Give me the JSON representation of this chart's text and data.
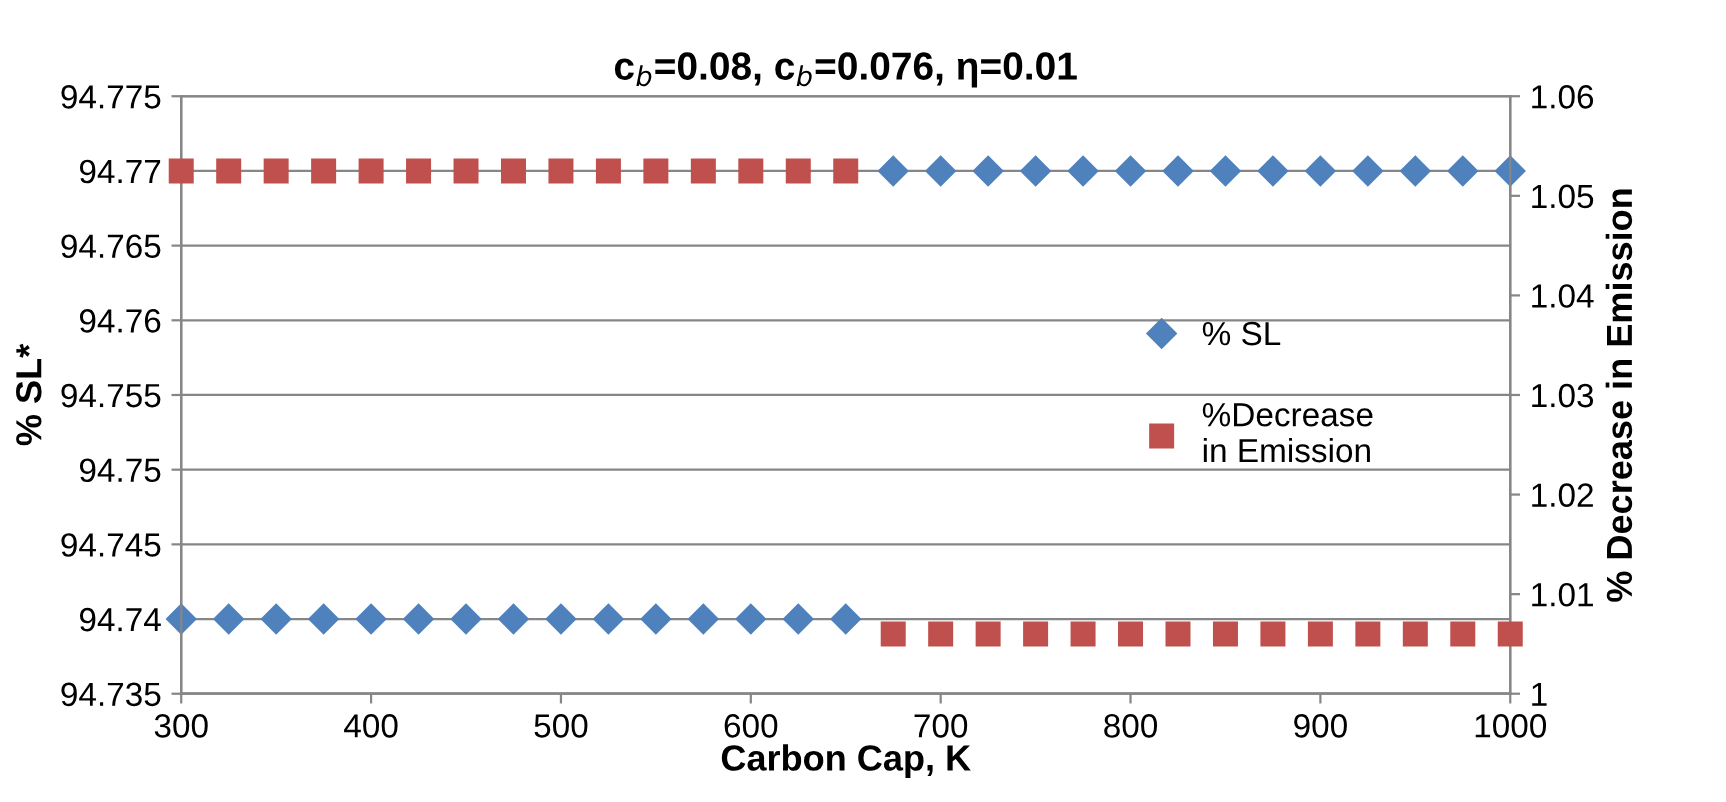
{
  "chart_data": {
    "type": "scatter",
    "title": "c$_{b}$=0.08, c$_{b}$=0.076, η=0.01",
    "xlabel": "Carbon Cap, K",
    "ylabel": "% SL*",
    "y2label": "% Decrease in Emission",
    "x": [
      300,
      325,
      350,
      375,
      400,
      425,
      450,
      475,
      500,
      525,
      550,
      575,
      600,
      625,
      650,
      675,
      700,
      725,
      750,
      775,
      800,
      825,
      850,
      875,
      900,
      925,
      950,
      975,
      1000
    ],
    "series": [
      {
        "name": "% SL",
        "color": "#4f81bd",
        "marker": "diamond",
        "values": [
          94.74,
          94.74,
          94.74,
          94.74,
          94.74,
          94.74,
          94.74,
          94.74,
          94.74,
          94.74,
          94.74,
          94.74,
          94.74,
          94.74,
          94.74,
          94.77,
          94.77,
          94.77,
          94.77,
          94.77,
          94.77,
          94.77,
          94.77,
          94.77,
          94.77,
          94.77,
          94.77,
          94.77,
          94.77
        ]
      },
      {
        "name": "%Decrease\nin Emission",
        "color": "#c0504d",
        "marker": "square",
        "axis": "y2",
        "values": [
          1.0525,
          1.0525,
          1.0525,
          1.0525,
          1.0525,
          1.0525,
          1.0525,
          1.0525,
          1.0525,
          1.0525,
          1.0525,
          1.0525,
          1.0525,
          1.0525,
          1.0525,
          1.006,
          1.006,
          1.006,
          1.006,
          1.006,
          1.006,
          1.006,
          1.006,
          1.006,
          1.006,
          1.006,
          1.006,
          1.006,
          1.006
        ]
      }
    ],
    "xlim": [
      300,
      1000
    ],
    "xticks": [
      300,
      400,
      500,
      600,
      700,
      800,
      900,
      1000
    ],
    "ylim": [
      94.735,
      94.775
    ],
    "yticks": [
      94.735,
      94.74,
      94.745,
      94.75,
      94.755,
      94.76,
      94.765,
      94.77,
      94.775
    ],
    "y2lim": [
      1,
      1.06
    ],
    "y2ticks": [
      1,
      1.01,
      1.02,
      1.03,
      1.04,
      1.05,
      1.06
    ],
    "grid": "y",
    "legend": "right"
  }
}
